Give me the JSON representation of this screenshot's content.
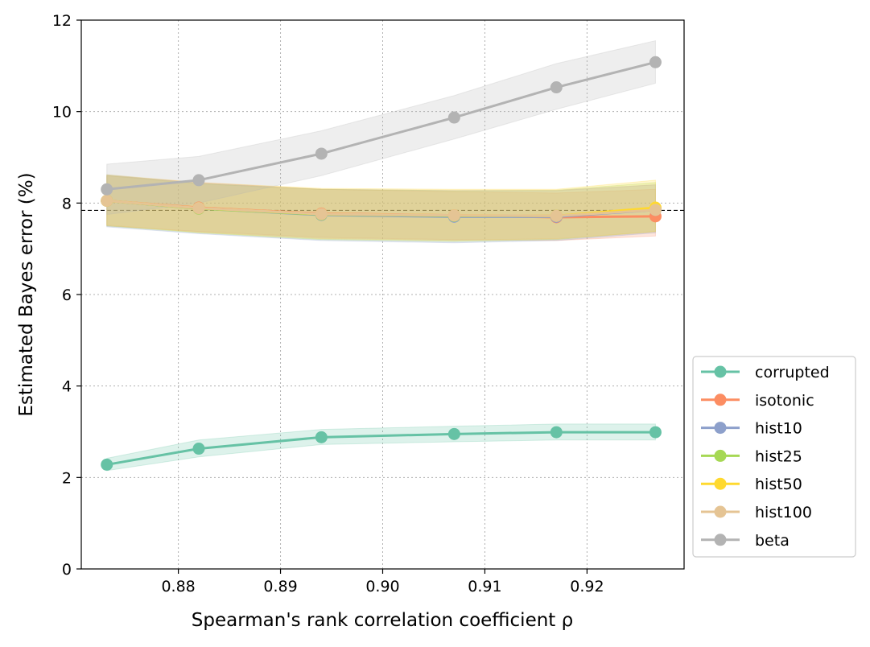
{
  "chart_data": {
    "type": "line",
    "title": "",
    "xlabel": "Spearman's rank correlation coefficient ρ",
    "ylabel": "Estimated Bayes error (%)",
    "x": [
      0.873,
      0.882,
      0.894,
      0.907,
      0.917,
      0.9267
    ],
    "xlim": [
      0.8705,
      0.9295
    ],
    "ylim": [
      0,
      12
    ],
    "xticks": [
      0.88,
      0.89,
      0.9,
      0.91,
      0.92
    ],
    "xtick_labels": [
      "0.88",
      "0.89",
      "0.90",
      "0.91",
      "0.92"
    ],
    "yticks": [
      0,
      2,
      4,
      6,
      8,
      10,
      12
    ],
    "ytick_labels": [
      "0",
      "2",
      "4",
      "6",
      "8",
      "10",
      "12"
    ],
    "grid": true,
    "legend_position": "right-bottom, outside",
    "reference_line": {
      "y": 7.84,
      "style": "dashed",
      "color": "#000000"
    },
    "series": [
      {
        "name": "corrupted",
        "color": "#66c2a5",
        "values": [
          2.28,
          2.63,
          2.88,
          2.95,
          2.99,
          2.99
        ],
        "band_lower": [
          2.15,
          2.45,
          2.72,
          2.78,
          2.82,
          2.82
        ],
        "band_upper": [
          2.42,
          2.82,
          3.05,
          3.12,
          3.17,
          3.17
        ]
      },
      {
        "name": "isotonic",
        "color": "#fc8d62",
        "values": [
          8.05,
          7.9,
          7.77,
          7.73,
          7.69,
          7.71
        ],
        "band_lower": [
          7.5,
          7.38,
          7.25,
          7.2,
          7.18,
          7.28
        ],
        "band_upper": [
          8.6,
          8.45,
          8.3,
          8.25,
          8.22,
          8.3
        ]
      },
      {
        "name": "hist10",
        "color": "#8da0cb",
        "values": [
          8.05,
          7.88,
          7.74,
          7.7,
          7.7,
          7.85
        ],
        "band_lower": [
          7.48,
          7.33,
          7.18,
          7.13,
          7.18,
          7.35
        ],
        "band_upper": [
          8.62,
          8.43,
          8.3,
          8.27,
          8.27,
          8.4
        ]
      },
      {
        "name": "hist25",
        "color": "#a6d854",
        "values": [
          8.05,
          7.88,
          7.75,
          7.72,
          7.72,
          7.88
        ],
        "band_lower": [
          7.5,
          7.35,
          7.2,
          7.16,
          7.2,
          7.38
        ],
        "band_upper": [
          8.6,
          8.42,
          8.3,
          8.27,
          8.28,
          8.45
        ]
      },
      {
        "name": "hist50",
        "color": "#ffd92f",
        "values": [
          8.05,
          7.89,
          7.76,
          7.73,
          7.72,
          7.9
        ],
        "band_lower": [
          7.52,
          7.36,
          7.22,
          7.18,
          7.22,
          7.38
        ],
        "band_upper": [
          8.62,
          8.45,
          8.32,
          8.3,
          8.3,
          8.5
        ]
      },
      {
        "name": "hist100",
        "color": "#e5c494",
        "values": [
          8.05,
          7.89,
          7.76,
          7.73,
          7.72,
          7.85
        ],
        "band_lower": [
          7.52,
          7.37,
          7.23,
          7.19,
          7.22,
          7.36
        ],
        "band_upper": [
          8.6,
          8.43,
          8.3,
          8.28,
          8.28,
          8.4
        ]
      },
      {
        "name": "beta",
        "color": "#b3b3b3",
        "values": [
          8.3,
          8.5,
          9.08,
          9.87,
          10.53,
          11.08
        ],
        "band_lower": [
          7.75,
          8.0,
          8.6,
          9.4,
          10.05,
          10.62
        ],
        "band_upper": [
          8.85,
          9.02,
          9.58,
          10.35,
          11.05,
          11.55
        ]
      }
    ]
  }
}
